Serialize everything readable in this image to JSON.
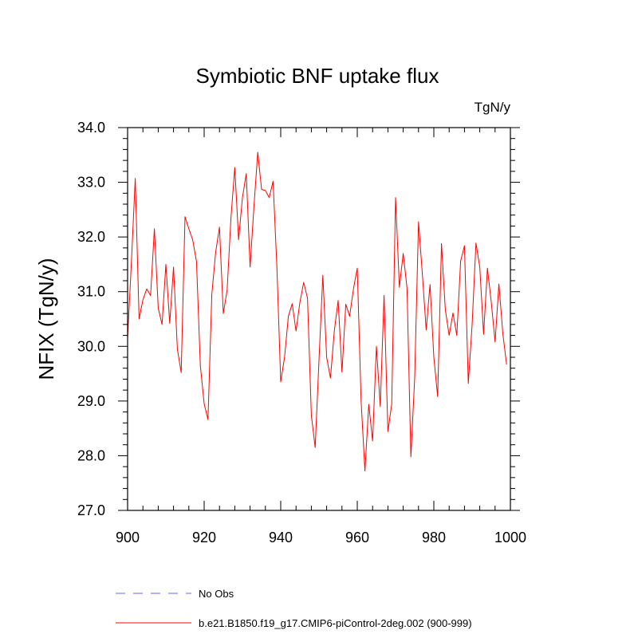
{
  "chart_data": {
    "type": "line",
    "title": "Symbiotic BNF uptake flux",
    "units": "TgN/y",
    "xlabel": "",
    "ylabel": "NFIX  (TgN/y)",
    "xlim": [
      900,
      1000
    ],
    "ylim": [
      27.0,
      34.0
    ],
    "xticks": [
      900,
      920,
      940,
      960,
      980,
      1000
    ],
    "xtick_labels": [
      "900",
      "920",
      "940",
      "960",
      "980",
      "1000"
    ],
    "yticks": [
      27.0,
      28.0,
      29.0,
      30.0,
      31.0,
      32.0,
      33.0,
      34.0
    ],
    "ytick_labels": [
      "27.0",
      "28.0",
      "29.0",
      "30.0",
      "31.0",
      "32.0",
      "33.0",
      "34.0"
    ],
    "grid": false,
    "legend_position": "bottom",
    "series": [
      {
        "name": "b.e21.B1850.f19_g17.CMIP6-piControl-2deg.002 (900-999)",
        "color": "#ff0000",
        "style": "solid",
        "x": [
          900,
          901,
          902,
          903,
          904,
          905,
          906,
          907,
          908,
          909,
          910,
          911,
          912,
          913,
          914,
          915,
          916,
          917,
          918,
          919,
          920,
          921,
          922,
          923,
          924,
          925,
          926,
          927,
          928,
          929,
          930,
          931,
          932,
          933,
          934,
          935,
          936,
          937,
          938,
          939,
          940,
          941,
          942,
          943,
          944,
          945,
          946,
          947,
          948,
          949,
          950,
          951,
          952,
          953,
          954,
          955,
          956,
          957,
          958,
          959,
          960,
          961,
          962,
          963,
          964,
          965,
          966,
          967,
          968,
          969,
          970,
          971,
          972,
          973,
          974,
          975,
          976,
          977,
          978,
          979,
          980,
          981,
          982,
          983,
          984,
          985,
          986,
          987,
          988,
          989,
          990,
          991,
          992,
          993,
          994,
          995,
          996,
          997,
          998,
          999
        ],
        "values": [
          30.15,
          31.55,
          33.07,
          30.5,
          30.85,
          31.05,
          30.93,
          32.15,
          30.7,
          30.4,
          31.5,
          30.42,
          31.45,
          29.95,
          29.52,
          32.37,
          32.15,
          31.95,
          31.55,
          29.65,
          28.95,
          28.66,
          30.95,
          31.72,
          32.18,
          30.6,
          31.03,
          32.35,
          33.27,
          31.95,
          32.72,
          33.16,
          31.45,
          32.55,
          33.55,
          32.87,
          32.85,
          32.72,
          33.02,
          31.45,
          29.35,
          29.8,
          30.55,
          30.78,
          30.28,
          30.8,
          31.17,
          30.88,
          28.74,
          28.15,
          29.75,
          31.3,
          29.8,
          29.42,
          30.28,
          30.84,
          29.53,
          30.77,
          30.55,
          31.05,
          31.43,
          29.0,
          27.72,
          28.94,
          28.27,
          30.0,
          28.9,
          30.93,
          28.44,
          28.95,
          32.72,
          31.08,
          31.7,
          31.06,
          27.98,
          29.43,
          32.28,
          31.32,
          30.3,
          31.13,
          29.8,
          29.08,
          31.88,
          30.67,
          30.2,
          30.61,
          30.2,
          31.56,
          31.84,
          29.32,
          30.4,
          31.89,
          31.45,
          30.22,
          31.43,
          30.81,
          30.08,
          31.14,
          30.25,
          29.67
        ]
      }
    ],
    "legend": [
      {
        "label": "No Obs",
        "color": "#6666ff",
        "style": "dashed"
      },
      {
        "label": "b.e21.B1850.f19_g17.CMIP6-piControl-2deg.002 (900-999)",
        "color": "#ff0000",
        "style": "solid"
      }
    ]
  }
}
